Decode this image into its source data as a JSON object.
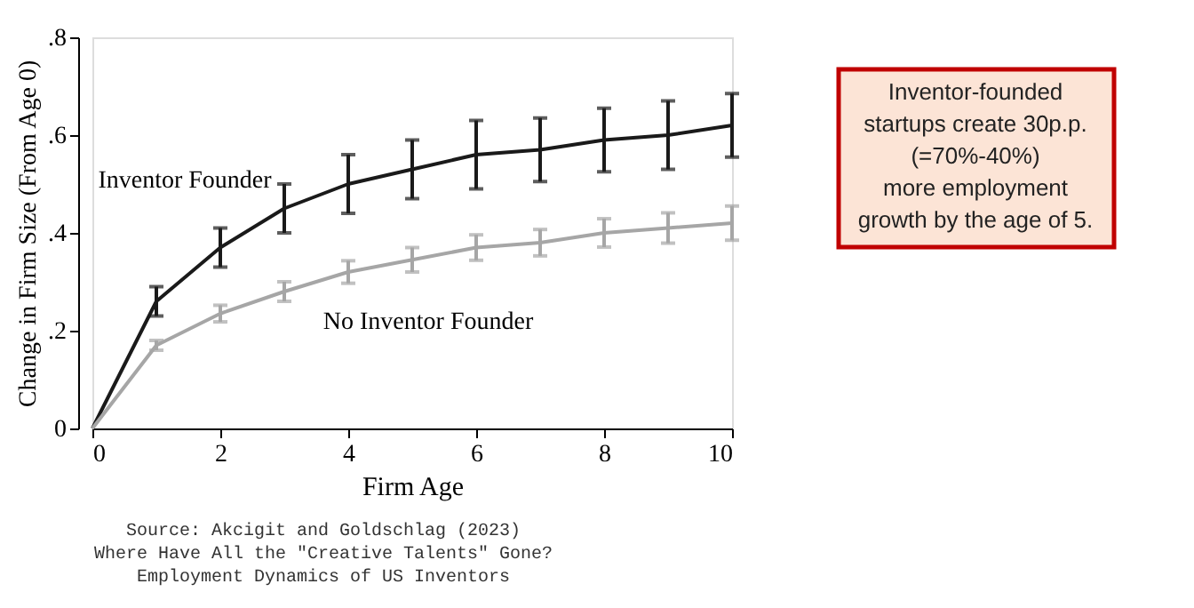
{
  "chart_data": {
    "type": "line",
    "xlabel": "Firm Age",
    "ylabel": "Change in Firm Size (From Age 0)",
    "x": [
      0,
      1,
      2,
      3,
      4,
      5,
      6,
      7,
      8,
      9,
      10
    ],
    "series": [
      {
        "name": "Inventor Founder",
        "color": "#1a1a1a",
        "values": [
          0,
          0.26,
          0.37,
          0.45,
          0.5,
          0.53,
          0.56,
          0.57,
          0.59,
          0.6,
          0.62
        ],
        "errors": [
          null,
          0.03,
          0.04,
          0.05,
          0.06,
          0.06,
          0.07,
          0.065,
          0.065,
          0.07,
          0.065
        ]
      },
      {
        "name": "No Inventor Founder",
        "color": "#a6a6a6",
        "values": [
          0,
          0.17,
          0.235,
          0.28,
          0.32,
          0.345,
          0.37,
          0.38,
          0.4,
          0.41,
          0.42
        ],
        "errors": [
          null,
          0.01,
          0.017,
          0.02,
          0.023,
          0.025,
          0.026,
          0.027,
          0.029,
          0.031,
          0.035
        ]
      }
    ],
    "xlim": [
      0,
      10
    ],
    "xticks": [
      0,
      2,
      4,
      6,
      8,
      10
    ],
    "ylim": [
      0,
      0.8
    ],
    "yticks": [
      {
        "value": 0,
        "label": "0"
      },
      {
        "value": 0.2,
        "label": ".2"
      },
      {
        "value": 0.4,
        "label": ".4"
      },
      {
        "value": 0.6,
        "label": ".6"
      },
      {
        "value": 0.8,
        "label": ".8"
      }
    ],
    "grid": false,
    "marker": "none",
    "line_style": "solid",
    "annotations": [
      "Inventor-founded\nstartups create 30p.p.\n(=70%-40%)\nmore employment\ngrowth by the age of 5.",
      "Source: Akcigit and Goldschlag (2023)\nWhere Have All the \"Creative Talents\" Gone?\nEmployment Dynamics of US Inventors"
    ]
  }
}
